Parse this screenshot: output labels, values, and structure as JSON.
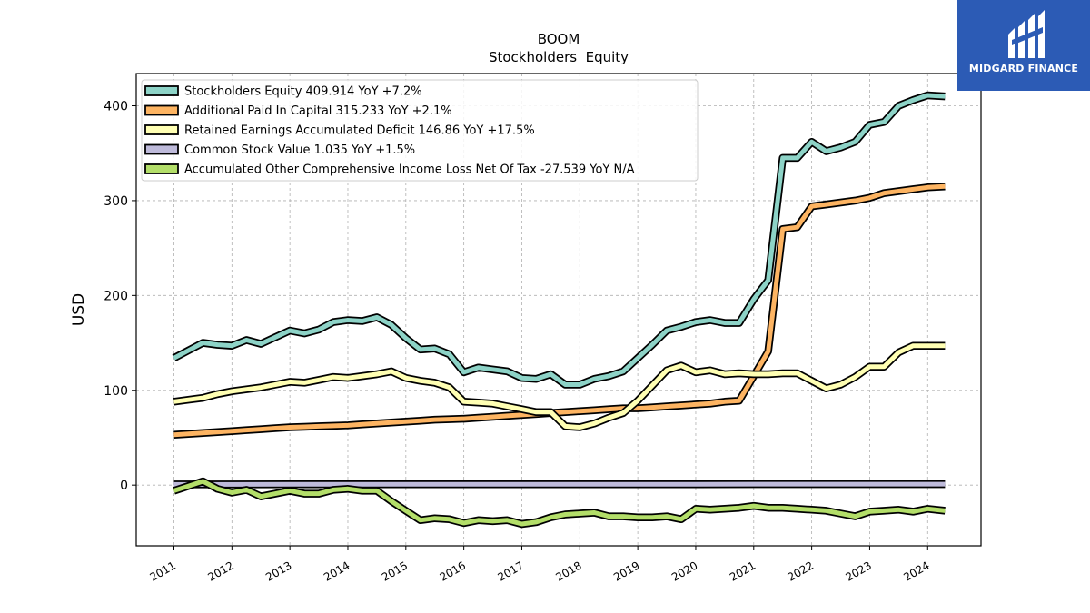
{
  "brand": {
    "name": "MIDGARD FINANCE",
    "logo_icon": "midgard-logo-icon",
    "bg_color": "#2c5bb5"
  },
  "chart_data": {
    "type": "line",
    "title": "BOOM",
    "subtitle": "Stockholders  Equity",
    "ylabel": "USD",
    "xlabel": "",
    "xlim": [
      2010.35,
      2024.92
    ],
    "ylim": [
      -64,
      434
    ],
    "yticks": [
      0,
      100,
      200,
      300,
      400
    ],
    "xticks": [
      2011,
      2012,
      2013,
      2014,
      2015,
      2016,
      2017,
      2018,
      2019,
      2020,
      2021,
      2022,
      2023,
      2024
    ],
    "grid": true,
    "legend_position": "top-left",
    "series": [
      {
        "name": "Stockholders Equity",
        "legend_label": "Stockholders Equity  409.914 YoY +7.2%",
        "color": "#8dd3c7",
        "x": [
          2011.0,
          2011.25,
          2011.5,
          2011.75,
          2012.0,
          2012.25,
          2012.5,
          2012.75,
          2013.0,
          2013.25,
          2013.5,
          2013.75,
          2014.0,
          2014.25,
          2014.5,
          2014.75,
          2015.0,
          2015.25,
          2015.5,
          2015.75,
          2016.0,
          2016.25,
          2016.5,
          2016.75,
          2017.0,
          2017.25,
          2017.5,
          2017.75,
          2018.0,
          2018.25,
          2018.5,
          2018.75,
          2019.0,
          2019.25,
          2019.5,
          2019.75,
          2020.0,
          2020.25,
          2020.5,
          2020.75,
          2021.0,
          2021.25,
          2021.5,
          2021.75,
          2022.0,
          2022.25,
          2022.5,
          2022.75,
          2023.0,
          2023.25,
          2023.5,
          2023.75,
          2024.0,
          2024.3
        ],
        "y": [
          134,
          142,
          150,
          148,
          147,
          153,
          149,
          156,
          163,
          160,
          164,
          172,
          174,
          173,
          177,
          169,
          155,
          143,
          144,
          138,
          119,
          124,
          122,
          120,
          113,
          112,
          117,
          106,
          106,
          112,
          115,
          120,
          134,
          148,
          163,
          167,
          172,
          174,
          171,
          171,
          196,
          216,
          345,
          345,
          362,
          352,
          356,
          362,
          380,
          383,
          400,
          406,
          411,
          410
        ]
      },
      {
        "name": "Additional Paid In Capital",
        "legend_label": "Additional Paid In Capital  315.233 YoY +2.1%",
        "color": "#fdb462",
        "x": [
          2011.0,
          2011.25,
          2011.5,
          2011.75,
          2012.0,
          2012.25,
          2012.5,
          2012.75,
          2013.0,
          2013.25,
          2013.5,
          2013.75,
          2014.0,
          2014.25,
          2014.5,
          2014.75,
          2015.0,
          2015.25,
          2015.5,
          2015.75,
          2016.0,
          2016.25,
          2016.5,
          2016.75,
          2017.0,
          2017.25,
          2017.5,
          2017.75,
          2018.0,
          2018.25,
          2018.5,
          2018.75,
          2019.0,
          2019.25,
          2019.5,
          2019.75,
          2020.0,
          2020.25,
          2020.5,
          2020.75,
          2021.0,
          2021.25,
          2021.5,
          2021.75,
          2022.0,
          2022.25,
          2022.5,
          2022.75,
          2023.0,
          2023.25,
          2023.5,
          2023.75,
          2024.0,
          2024.3
        ],
        "y": [
          53,
          54,
          55,
          56,
          57,
          58,
          59,
          60,
          61,
          61.5,
          62,
          62.5,
          63,
          64,
          65,
          66,
          67,
          68,
          69,
          69.5,
          70,
          71,
          72,
          73,
          74,
          75,
          76,
          77,
          78,
          79,
          80,
          81,
          81,
          82,
          83,
          84,
          85,
          86,
          88,
          89,
          115,
          141,
          270,
          272,
          294,
          296,
          298,
          300,
          303,
          308,
          310,
          312,
          314,
          315
        ]
      },
      {
        "name": "Retained Earnings Accumulated Deficit",
        "legend_label": "Retained Earnings Accumulated Deficit  146.86 YoY +17.5%",
        "color": "#ffffb3",
        "x": [
          2011.0,
          2011.25,
          2011.5,
          2011.75,
          2012.0,
          2012.25,
          2012.5,
          2012.75,
          2013.0,
          2013.25,
          2013.5,
          2013.75,
          2014.0,
          2014.25,
          2014.5,
          2014.75,
          2015.0,
          2015.25,
          2015.5,
          2015.75,
          2016.0,
          2016.25,
          2016.5,
          2016.75,
          2017.0,
          2017.25,
          2017.5,
          2017.75,
          2018.0,
          2018.25,
          2018.5,
          2018.75,
          2019.0,
          2019.25,
          2019.5,
          2019.75,
          2020.0,
          2020.25,
          2020.5,
          2020.75,
          2021.0,
          2021.25,
          2021.5,
          2021.75,
          2022.0,
          2022.25,
          2022.5,
          2022.75,
          2023.0,
          2023.25,
          2023.5,
          2023.75,
          2024.0,
          2024.3
        ],
        "y": [
          88,
          90,
          92,
          96,
          99,
          101,
          103,
          106,
          109,
          108,
          111,
          114,
          113,
          115,
          117,
          120,
          113,
          110,
          108,
          103,
          88,
          87,
          86,
          83,
          80,
          77,
          77,
          62,
          61,
          65,
          71,
          76,
          89,
          105,
          121,
          126,
          119,
          121,
          117,
          118,
          117,
          117,
          118,
          118,
          110,
          102,
          106,
          114,
          125,
          125,
          140,
          147,
          147,
          147
        ]
      },
      {
        "name": "Common Stock Value",
        "legend_label": "Common Stock Value  1.035 YoY +1.5%",
        "color": "#bebada",
        "x": [
          2011.0,
          2012.0,
          2013.0,
          2014.0,
          2015.0,
          2016.0,
          2017.0,
          2018.0,
          2019.0,
          2020.0,
          2021.0,
          2022.0,
          2023.0,
          2024.3
        ],
        "y": [
          0.7,
          0.75,
          0.8,
          0.83,
          0.85,
          0.87,
          0.9,
          0.92,
          0.94,
          0.96,
          0.98,
          1.0,
          1.02,
          1.035
        ]
      },
      {
        "name": "Accumulated Other Comprehensive Income Loss Net Of Tax",
        "legend_label": "Accumulated Other Comprehensive Income Loss Net Of Tax  -27.539 YoY N/A",
        "color": "#b3de69",
        "x": [
          2011.0,
          2011.25,
          2011.5,
          2011.75,
          2012.0,
          2012.25,
          2012.5,
          2012.75,
          2013.0,
          2013.25,
          2013.5,
          2013.75,
          2014.0,
          2014.25,
          2014.5,
          2014.75,
          2015.0,
          2015.25,
          2015.5,
          2015.75,
          2016.0,
          2016.25,
          2016.5,
          2016.75,
          2017.0,
          2017.25,
          2017.5,
          2017.75,
          2018.0,
          2018.25,
          2018.5,
          2018.75,
          2019.0,
          2019.25,
          2019.5,
          2019.75,
          2020.0,
          2020.25,
          2020.5,
          2020.75,
          2021.0,
          2021.25,
          2021.5,
          2021.75,
          2022.0,
          2022.25,
          2022.5,
          2022.75,
          2023.0,
          2023.25,
          2023.5,
          2023.75,
          2024.0,
          2024.3
        ],
        "y": [
          -6,
          -1,
          4,
          -4,
          -8,
          -5,
          -12,
          -9,
          -6,
          -9,
          -9,
          -5,
          -4,
          -6,
          -6,
          -17,
          -27,
          -37,
          -35,
          -36,
          -40,
          -37,
          -38,
          -37,
          -41,
          -39,
          -34,
          -31,
          -30,
          -29,
          -33,
          -33,
          -34,
          -34,
          -33,
          -36,
          -25,
          -26,
          -25,
          -24,
          -22,
          -24,
          -24,
          -25,
          -26,
          -27,
          -30,
          -33,
          -28,
          -27,
          -26,
          -28,
          -25,
          -27
        ]
      }
    ]
  }
}
